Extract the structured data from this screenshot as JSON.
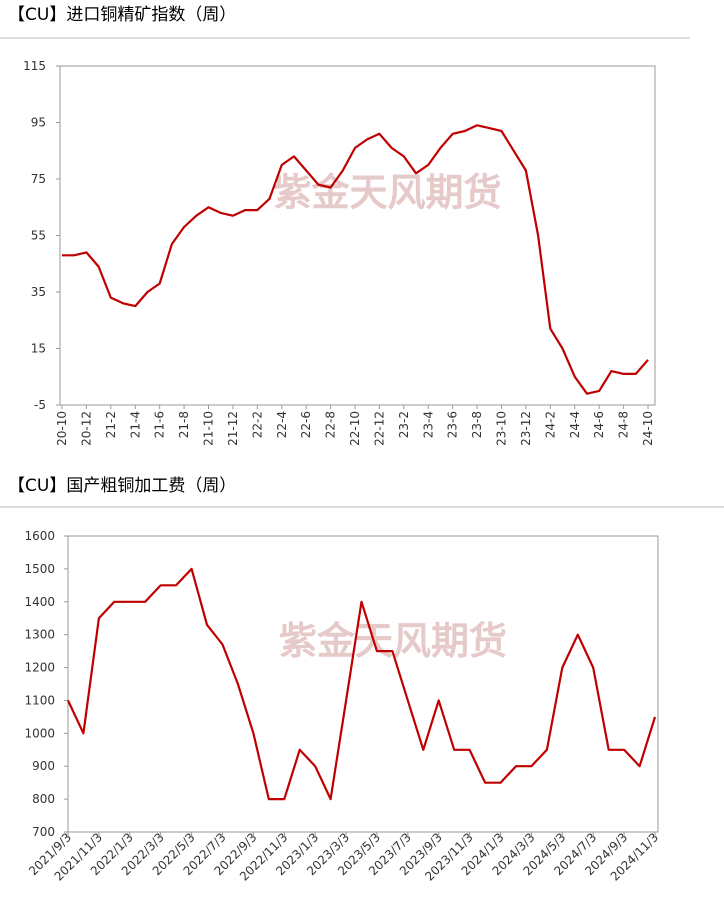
{
  "chart_data": [
    {
      "type": "line",
      "title": "【CU】进口铜精矿指数（周）",
      "watermark": "紫金天风期货",
      "color": "#c00000",
      "categories": [
        "20-10",
        null,
        "20-12",
        null,
        "21-2",
        null,
        "21-4",
        null,
        "21-6",
        null,
        "21-8",
        null,
        "21-10",
        null,
        "21-12",
        null,
        "22-2",
        null,
        "22-4",
        null,
        "22-6",
        null,
        "22-8",
        null,
        "22-10",
        null,
        "22-12",
        null,
        "23-2",
        null,
        "23-4",
        null,
        "23-6",
        null,
        "23-8",
        null,
        "23-10",
        null,
        "23-12",
        null,
        "24-2",
        null,
        "24-4",
        null,
        "24-6",
        null,
        "24-8",
        null,
        "24-10"
      ],
      "values": [
        48,
        48,
        49,
        44,
        33,
        31,
        30,
        35,
        38,
        52,
        58,
        62,
        65,
        63,
        62,
        64,
        64,
        68,
        80,
        83,
        78,
        73,
        72,
        78,
        86,
        89,
        91,
        86,
        83,
        77,
        80,
        86,
        91,
        92,
        94,
        93,
        92,
        85,
        78,
        55,
        22,
        15,
        5,
        -1,
        0,
        7,
        6,
        6,
        11
      ],
      "ylim": [
        -5,
        115
      ],
      "yticks": [
        -5,
        15,
        35,
        55,
        75,
        95,
        115
      ]
    },
    {
      "type": "line",
      "title": "【CU】国产粗铜加工费（周）",
      "watermark": "紫金天风期货",
      "color": "#c00000",
      "categories": [
        "2021/9/3",
        null,
        "2021/11/3",
        null,
        "2022/1/3",
        null,
        "2022/3/3",
        null,
        "2022/5/3",
        null,
        "2022/7/3",
        null,
        "2022/9/3",
        null,
        "2022/11/3",
        null,
        "2023/1/3",
        null,
        "2023/3/3",
        null,
        "2023/5/3",
        null,
        "2023/7/3",
        null,
        "2023/9/3",
        null,
        "2023/11/3",
        null,
        "2024/1/3",
        null,
        "2024/3/3",
        null,
        "2024/5/3",
        null,
        "2024/7/3",
        null,
        "2024/9/3",
        null,
        "2024/11/3"
      ],
      "values": [
        1100,
        1000,
        1350,
        1400,
        1400,
        1400,
        1450,
        1450,
        1500,
        1330,
        1270,
        1150,
        1000,
        800,
        800,
        950,
        900,
        800,
        1100,
        1400,
        1250,
        1250,
        1100,
        950,
        1100,
        950,
        950,
        850,
        850,
        900,
        900,
        950,
        1200,
        1300,
        1200,
        950,
        950,
        900,
        1050
      ],
      "ylim": [
        700,
        1600
      ],
      "yticks": [
        700,
        800,
        900,
        1000,
        1100,
        1200,
        1300,
        1400,
        1500,
        1600
      ]
    }
  ]
}
